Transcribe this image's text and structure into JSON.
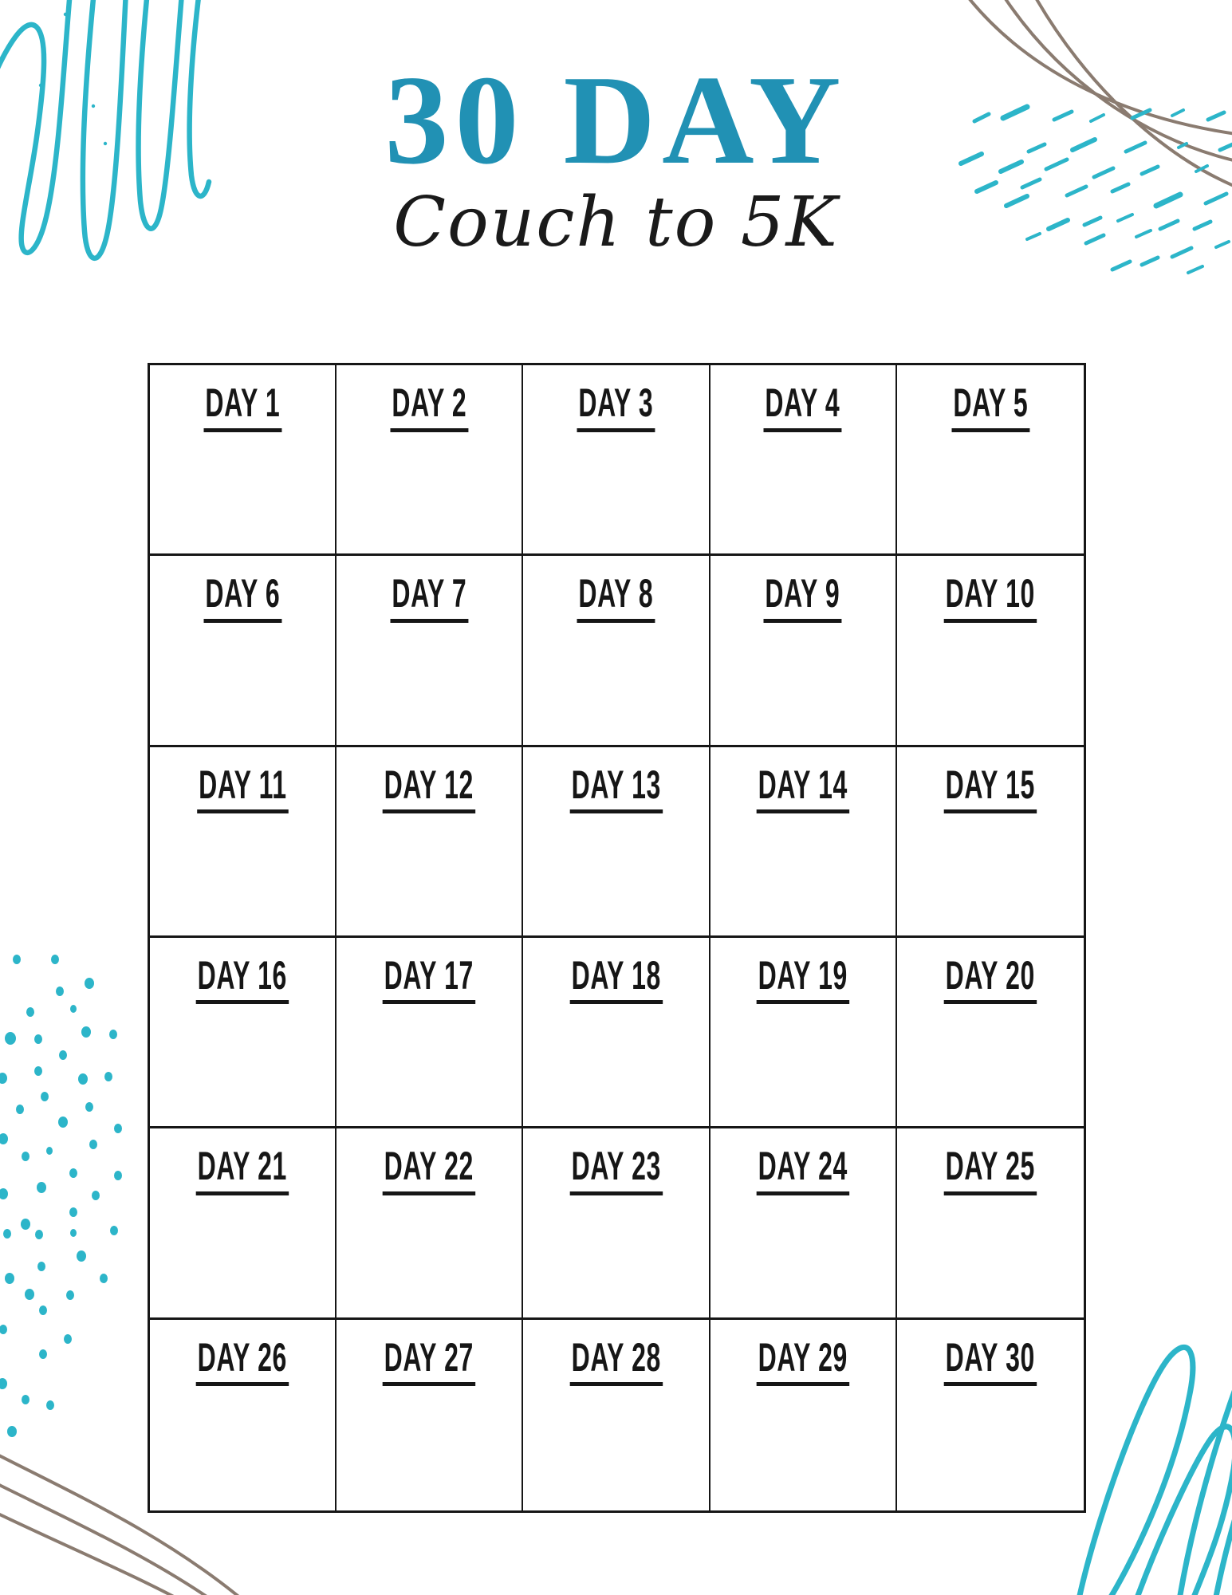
{
  "header": {
    "title": "30 DAY",
    "subtitle": "Couch to 5K"
  },
  "grid": {
    "days": [
      "DAY 1",
      "DAY 2",
      "DAY 3",
      "DAY 4",
      "DAY 5",
      "DAY 6",
      "DAY 7",
      "DAY 8",
      "DAY 9",
      "DAY 10",
      "DAY 11",
      "DAY 12",
      "DAY 13",
      "DAY 14",
      "DAY 15",
      "DAY 16",
      "DAY 17",
      "DAY 18",
      "DAY 19",
      "DAY 20",
      "DAY 21",
      "DAY 22",
      "DAY 23",
      "DAY 24",
      "DAY 25",
      "DAY 26",
      "DAY 27",
      "DAY 28",
      "DAY 29",
      "DAY 30"
    ]
  },
  "colors": {
    "accent_teal": "#2191b4",
    "scribble_teal": "#2cb5c9",
    "line_brown": "#8a7b70",
    "ink": "#1a1a1a"
  }
}
